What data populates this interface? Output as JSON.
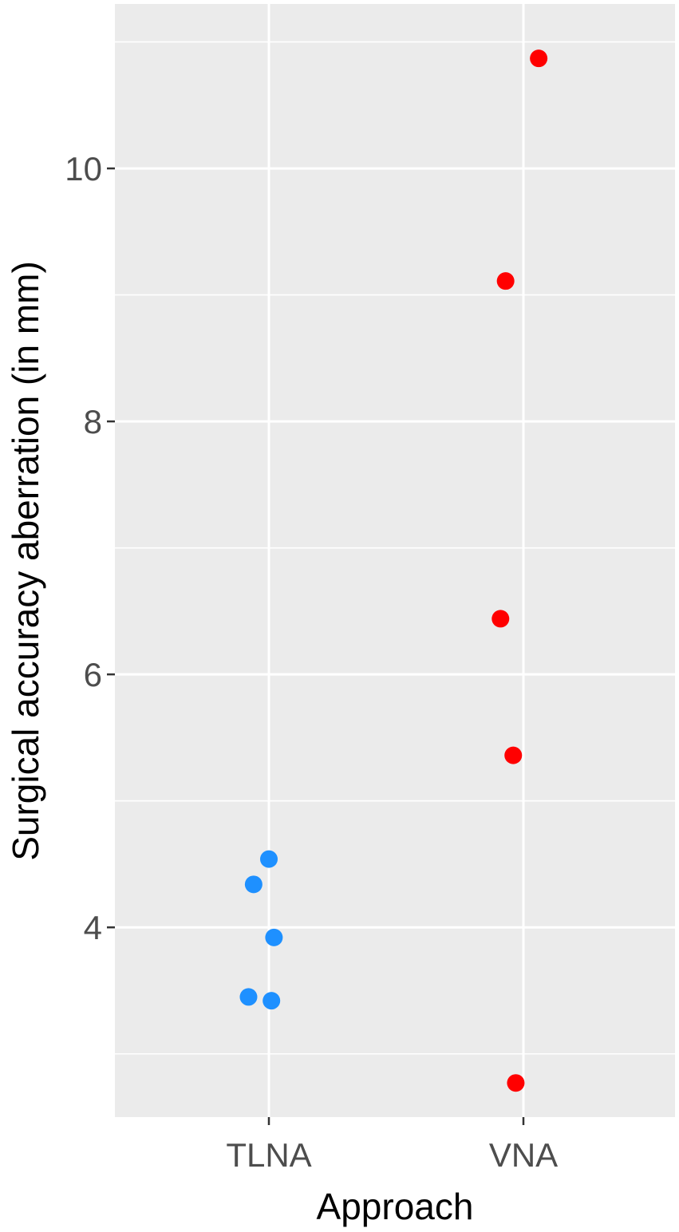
{
  "chart_data": {
    "type": "scatter",
    "title": "",
    "xlabel": "Approach",
    "ylabel": "Surgical accuracy aberration (in mm)",
    "categories": [
      "TLNA",
      "VNA"
    ],
    "ylim": [
      2.5,
      11.3
    ],
    "yticks": [
      4,
      6,
      8,
      10
    ],
    "yminor": [
      3,
      5,
      7,
      9,
      11
    ],
    "grid": true,
    "legend": "none",
    "series": [
      {
        "category": "TLNA",
        "color": "#1E90FF",
        "points": [
          {
            "jitter": -0.06,
            "y": 4.34
          },
          {
            "jitter": 0.0,
            "y": 4.54
          },
          {
            "jitter": 0.02,
            "y": 3.92
          },
          {
            "jitter": -0.08,
            "y": 3.45
          },
          {
            "jitter": 0.01,
            "y": 3.42
          }
        ]
      },
      {
        "category": "VNA",
        "color": "#FF0000",
        "points": [
          {
            "jitter": 0.06,
            "y": 10.87
          },
          {
            "jitter": -0.07,
            "y": 9.11
          },
          {
            "jitter": -0.09,
            "y": 6.44
          },
          {
            "jitter": -0.04,
            "y": 5.36
          },
          {
            "jitter": -0.03,
            "y": 2.77
          }
        ]
      }
    ],
    "colors": {
      "panel": "#EBEBEB",
      "grid": "#FFFFFF",
      "tick": "#333333"
    }
  }
}
